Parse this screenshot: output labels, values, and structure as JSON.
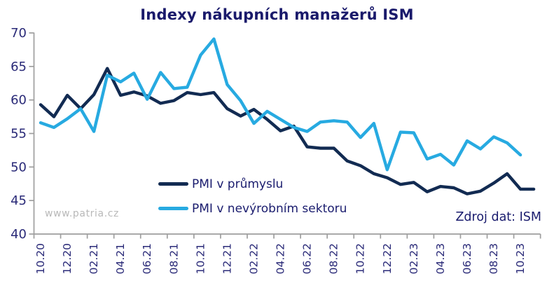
{
  "chart_data": {
    "type": "line",
    "title": "Indexy nákupních manažerů ISM",
    "watermark": "www.patria.cz",
    "source_note": "Zdroj dat: ISM",
    "grid": false,
    "legend_position": "inside-bottom-left",
    "ylim": [
      40,
      70
    ],
    "y_ticks": [
      70,
      65,
      60,
      55,
      50,
      45,
      40
    ],
    "x_tick_labels": [
      "10.20",
      "12.20",
      "02.21",
      "04.21",
      "06.21",
      "08.21",
      "10.21",
      "12.21",
      "02.22",
      "04.22",
      "06.22",
      "08.22",
      "10.22",
      "12.22",
      "02.23",
      "04.23",
      "06.23",
      "08.23",
      "10.23"
    ],
    "categories": [
      "10.20",
      "11.20",
      "12.20",
      "01.21",
      "02.21",
      "03.21",
      "04.21",
      "05.21",
      "06.21",
      "07.21",
      "08.21",
      "09.21",
      "10.21",
      "11.21",
      "12.21",
      "01.22",
      "02.22",
      "03.22",
      "04.22",
      "05.22",
      "06.22",
      "07.22",
      "08.22",
      "09.22",
      "10.22",
      "11.22",
      "12.22",
      "01.23",
      "02.23",
      "03.23",
      "04.23",
      "05.23",
      "06.23",
      "07.23",
      "08.23",
      "09.23",
      "10.23",
      "11.23"
    ],
    "series": [
      {
        "name": "PMI v průmyslu",
        "color": "#122b52",
        "values": [
          59.3,
          57.5,
          60.7,
          58.7,
          60.8,
          64.7,
          60.7,
          61.2,
          60.6,
          59.5,
          59.9,
          61.1,
          60.8,
          61.1,
          58.7,
          57.6,
          58.6,
          57.1,
          55.4,
          56.1,
          53.0,
          52.8,
          52.8,
          50.9,
          50.2,
          49.0,
          48.4,
          47.4,
          47.7,
          46.3,
          47.1,
          46.9,
          46.0,
          46.4,
          47.6,
          49.0,
          46.7,
          46.7
        ]
      },
      {
        "name": "PMI v nevýrobním sektoru",
        "color": "#27aae1",
        "values": [
          56.6,
          55.9,
          57.2,
          58.7,
          55.3,
          63.7,
          62.7,
          64.0,
          60.1,
          64.1,
          61.7,
          61.9,
          66.7,
          69.1,
          62.3,
          59.9,
          56.5,
          58.3,
          57.1,
          55.9,
          55.3,
          56.7,
          56.9,
          56.7,
          54.4,
          56.5,
          49.6,
          55.2,
          55.1,
          51.2,
          51.9,
          50.3,
          53.9,
          52.7,
          54.5,
          53.6,
          51.8,
          null
        ]
      }
    ],
    "axis_color": "#9e9e9e"
  }
}
